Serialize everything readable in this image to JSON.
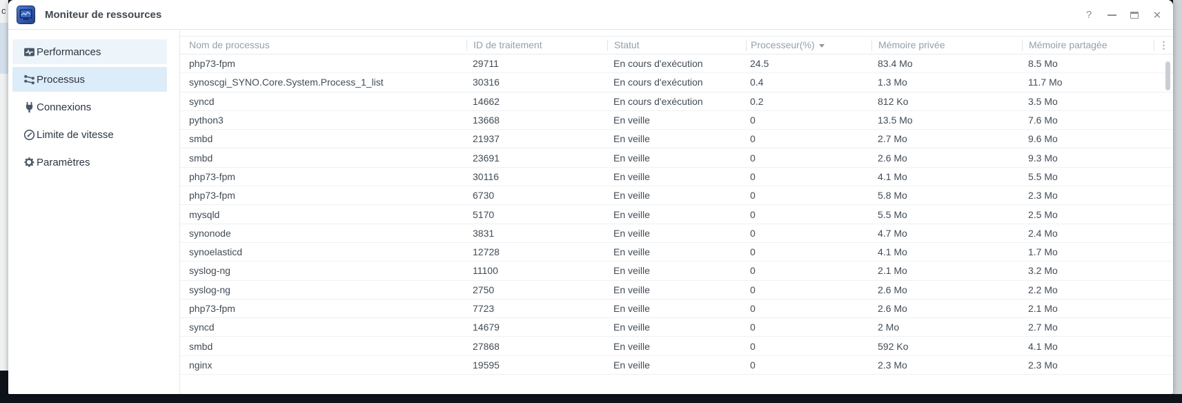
{
  "background": {
    "partial_text": "c"
  },
  "window": {
    "title": "Moniteur de ressources",
    "controls": {
      "help": "?",
      "minimize": "minimize",
      "maximize": "maximize",
      "close": "✕"
    }
  },
  "sidebar": {
    "items": [
      {
        "label": "Performances",
        "icon": "performance-icon",
        "state": "hover"
      },
      {
        "label": "Processus",
        "icon": "process-icon",
        "state": "selected"
      },
      {
        "label": "Connexions",
        "icon": "plug-icon",
        "state": ""
      },
      {
        "label": "Limite de vitesse",
        "icon": "speedometer-icon",
        "state": ""
      },
      {
        "label": "Paramètres",
        "icon": "gear-icon",
        "state": ""
      }
    ]
  },
  "table": {
    "columns": [
      {
        "label": "Nom de processus",
        "sorted": false,
        "key": "name"
      },
      {
        "label": "ID de traitement",
        "sorted": false,
        "key": "pid"
      },
      {
        "label": "Statut",
        "sorted": false,
        "key": "status"
      },
      {
        "label": "Processeur(%)",
        "sorted": true,
        "key": "cpu"
      },
      {
        "label": "Mémoire privée",
        "sorted": false,
        "key": "priv"
      },
      {
        "label": "Mémoire partagée",
        "sorted": false,
        "key": "shared"
      }
    ],
    "rows": [
      [
        "php73-fpm",
        "29711",
        "En cours d'exécution",
        "24.5",
        "83.4 Mo",
        "8.5 Mo"
      ],
      [
        "synoscgi_SYNO.Core.System.Process_1_list",
        "30316",
        "En cours d'exécution",
        "0.4",
        "1.3 Mo",
        "11.7 Mo"
      ],
      [
        "syncd",
        "14662",
        "En cours d'exécution",
        "0.2",
        "812 Ko",
        "3.5 Mo"
      ],
      [
        "python3",
        "13668",
        "En veille",
        "0",
        "13.5 Mo",
        "7.6 Mo"
      ],
      [
        "smbd",
        "21937",
        "En veille",
        "0",
        "2.7 Mo",
        "9.6 Mo"
      ],
      [
        "smbd",
        "23691",
        "En veille",
        "0",
        "2.6 Mo",
        "9.3 Mo"
      ],
      [
        "php73-fpm",
        "30116",
        "En veille",
        "0",
        "4.1 Mo",
        "5.5 Mo"
      ],
      [
        "php73-fpm",
        "6730",
        "En veille",
        "0",
        "5.8 Mo",
        "2.3 Mo"
      ],
      [
        "mysqld",
        "5170",
        "En veille",
        "0",
        "5.5 Mo",
        "2.5 Mo"
      ],
      [
        "synonode",
        "3831",
        "En veille",
        "0",
        "4.7 Mo",
        "2.4 Mo"
      ],
      [
        "synoelasticd",
        "12728",
        "En veille",
        "0",
        "4.1 Mo",
        "1.7 Mo"
      ],
      [
        "syslog-ng",
        "11100",
        "En veille",
        "0",
        "2.1 Mo",
        "3.2 Mo"
      ],
      [
        "syslog-ng",
        "2750",
        "En veille",
        "0",
        "2.6 Mo",
        "2.2 Mo"
      ],
      [
        "php73-fpm",
        "7723",
        "En veille",
        "0",
        "2.6 Mo",
        "2.1 Mo"
      ],
      [
        "syncd",
        "14679",
        "En veille",
        "0",
        "2 Mo",
        "2.7 Mo"
      ],
      [
        "smbd",
        "27868",
        "En veille",
        "0",
        "592 Ko",
        "4.1 Mo"
      ],
      [
        "nginx",
        "19595",
        "En veille",
        "0",
        "2.3 Mo",
        "2.3 Mo"
      ]
    ],
    "menu_icon": "⋮"
  },
  "colors": {
    "accent_selected_bg": "#dcecf8",
    "hover_bg": "#edf5fb",
    "header_text": "#93a0ab",
    "row_text": "#414b57",
    "app_icon_blue": "#2f56ac",
    "desktop_dark": "#0e1319"
  }
}
